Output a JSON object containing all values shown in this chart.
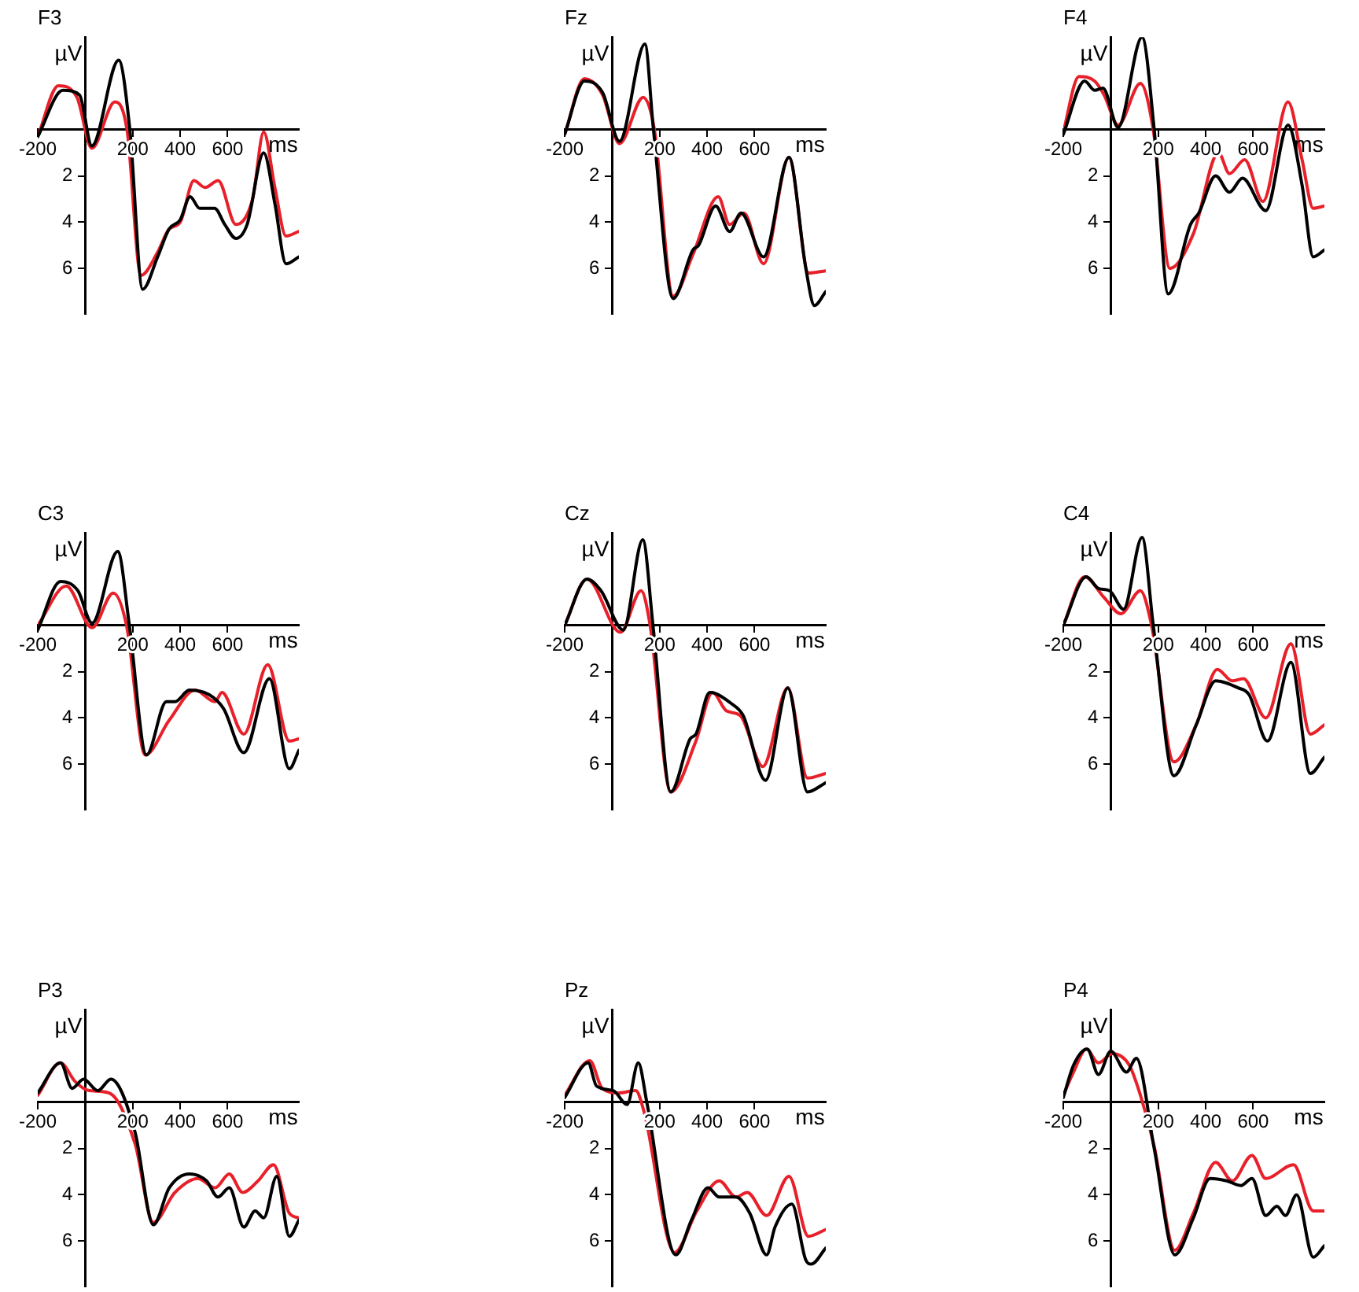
{
  "chart_data": [
    {
      "type": "line",
      "title": "F3",
      "xlabel": "ms",
      "ylabel": "µV",
      "xlim": [
        -200,
        900
      ],
      "ylim": [
        8,
        -4
      ],
      "xticks": [
        -200,
        200,
        400,
        600
      ],
      "yticks": [
        2,
        4,
        6
      ],
      "series": [
        {
          "color": "#000000",
          "x": [
            -200,
            -94,
            -24,
            28,
            141,
            188,
            242,
            305,
            353,
            400,
            442,
            482,
            545,
            588,
            635,
            682,
            752,
            799,
            846,
            900
          ],
          "values": [
            0.3,
            -1.7,
            -1.5,
            0.7,
            -3.0,
            0,
            6.9,
            5.5,
            4.3,
            3.9,
            2.9,
            3.4,
            3.4,
            4.1,
            4.7,
            4.1,
            1.0,
            3.2,
            5.8,
            5.5
          ]
        },
        {
          "color": "#e8202a",
          "x": [
            -200,
            -113,
            -35,
            28,
            125,
            176,
            235,
            305,
            353,
            400,
            458,
            505,
            560,
            635,
            705,
            752,
            799,
            846,
            900
          ],
          "values": [
            0.3,
            -1.9,
            -1.4,
            0.8,
            -1.2,
            0,
            6.3,
            5.3,
            4.3,
            4.0,
            2.2,
            2.5,
            2.2,
            4.1,
            3.0,
            0.1,
            2.5,
            4.6,
            4.4
          ]
        }
      ]
    },
    {
      "type": "line",
      "title": "Fz",
      "xlabel": "ms",
      "ylabel": "µV",
      "xlim": [
        -200,
        900
      ],
      "ylim": [
        8,
        -4
      ],
      "xticks": [
        -200,
        200,
        400,
        600
      ],
      "yticks": [
        2,
        4,
        6
      ],
      "series": [
        {
          "color": "#000000",
          "x": [
            -200,
            -117,
            -40,
            31,
            138,
            174,
            257,
            340,
            364,
            436,
            495,
            543,
            638,
            745,
            816,
            852,
            900
          ],
          "values": [
            0.2,
            -2.1,
            -1.6,
            0.5,
            -3.7,
            0,
            7.3,
            5.2,
            5.0,
            3.3,
            4.4,
            3.6,
            5.5,
            1.2,
            6.0,
            7.6,
            7.0
          ]
        },
        {
          "color": "#e8202a",
          "x": [
            -200,
            -117,
            -40,
            31,
            131,
            178,
            257,
            340,
            447,
            495,
            555,
            638,
            745,
            828,
            900
          ],
          "values": [
            0.2,
            -2.2,
            -1.5,
            0.6,
            -1.4,
            0,
            7.2,
            5.4,
            2.9,
            4.1,
            3.6,
            5.8,
            1.2,
            6.2,
            6.1
          ]
        }
      ]
    },
    {
      "type": "line",
      "title": "F4",
      "xlabel": "ms",
      "ylabel": "µV",
      "xlim": [
        -200,
        900
      ],
      "ylim": [
        8,
        -4
      ],
      "xticks": [
        -200,
        200,
        400,
        600
      ],
      "yticks": [
        2,
        4,
        6
      ],
      "series": [
        {
          "color": "#000000",
          "x": [
            -200,
            -110,
            -68,
            -33,
            31,
            132,
            183,
            242,
            336,
            371,
            442,
            500,
            555,
            653,
            747,
            806,
            853,
            900
          ],
          "values": [
            0.2,
            -2.1,
            -1.7,
            -1.8,
            -0.1,
            -4.0,
            0,
            7.1,
            4.1,
            3.6,
            2.0,
            2.7,
            2.1,
            3.5,
            -0.2,
            2.4,
            5.5,
            5.2
          ]
        },
        {
          "color": "#e8202a",
          "x": [
            -200,
            -134,
            -68,
            -28,
            31,
            125,
            179,
            249,
            348,
            454,
            500,
            564,
            641,
            747,
            806,
            853,
            900
          ],
          "values": [
            0.1,
            -2.3,
            -2.1,
            -1.5,
            -0.2,
            -2.0,
            0,
            6.0,
            4.5,
            1.0,
            1.9,
            1.3,
            3.1,
            -1.2,
            1.3,
            3.4,
            3.3
          ]
        }
      ]
    },
    {
      "type": "line",
      "title": "C3",
      "xlabel": "ms",
      "ylabel": "µV",
      "xlim": [
        -200,
        900
      ],
      "ylim": [
        8,
        -4
      ],
      "xticks": [
        -200,
        200,
        400,
        600
      ],
      "yticks": [
        2,
        4,
        6
      ],
      "series": [
        {
          "color": "#000000",
          "x": [
            -200,
            -104,
            -31,
            29,
            137,
            186,
            258,
            342,
            378,
            439,
            523,
            583,
            668,
            776,
            860,
            900
          ],
          "values": [
            0.2,
            -1.9,
            -1.5,
            -0.1,
            -3.2,
            0,
            5.6,
            3.3,
            3.3,
            2.8,
            3.0,
            3.6,
            5.5,
            2.3,
            6.2,
            5.4
          ]
        },
        {
          "color": "#e8202a",
          "x": [
            -200,
            -80,
            29,
            118,
            174,
            253,
            354,
            463,
            547,
            576,
            668,
            769,
            860,
            900
          ],
          "values": [
            0.0,
            -1.7,
            0.1,
            -1.4,
            0,
            5.6,
            4.1,
            2.8,
            3.3,
            2.9,
            4.7,
            1.7,
            5.0,
            4.9
          ]
        }
      ]
    },
    {
      "type": "line",
      "title": "Cz",
      "xlabel": "ms",
      "ylabel": "µV",
      "xlim": [
        -200,
        900
      ],
      "ylim": [
        8,
        -4
      ],
      "xticks": [
        -200,
        200,
        400,
        600
      ],
      "yticks": [
        2,
        4,
        6
      ],
      "series": [
        {
          "color": "#000000",
          "x": [
            -200,
            -106,
            -47,
            47,
            129,
            172,
            247,
            329,
            353,
            411,
            505,
            552,
            646,
            740,
            823,
            900
          ],
          "values": [
            0.0,
            -2.0,
            -1.5,
            0.2,
            -3.7,
            0,
            7.2,
            4.9,
            4.7,
            2.9,
            3.4,
            3.9,
            6.7,
            2.7,
            7.2,
            6.8
          ]
        },
        {
          "color": "#e8202a",
          "x": [
            -200,
            -106,
            35,
            122,
            160,
            247,
            353,
            423,
            482,
            540,
            635,
            740,
            823,
            900
          ],
          "values": [
            0.0,
            -2.0,
            0.3,
            -1.5,
            0,
            7.2,
            5.0,
            2.9,
            3.7,
            3.9,
            6.1,
            2.7,
            6.6,
            6.4
          ]
        }
      ]
    },
    {
      "type": "line",
      "title": "C4",
      "xlabel": "ms",
      "ylabel": "µV",
      "xlim": [
        -200,
        900
      ],
      "ylim": [
        8,
        -4
      ],
      "xticks": [
        -200,
        200,
        400,
        600
      ],
      "yticks": [
        2,
        4,
        6
      ],
      "series": [
        {
          "color": "#000000",
          "x": [
            -200,
            -103,
            -52,
            -5,
            54,
            132,
            179,
            266,
            360,
            442,
            536,
            583,
            660,
            759,
            841,
            900
          ],
          "values": [
            0.0,
            -2.1,
            -1.6,
            -1.5,
            -0.7,
            -3.8,
            0,
            6.5,
            4.3,
            2.4,
            2.7,
            3.0,
            5.0,
            1.6,
            6.4,
            5.7
          ]
        },
        {
          "color": "#e8202a",
          "x": [
            -200,
            -110,
            -28,
            42,
            125,
            172,
            266,
            360,
            449,
            512,
            559,
            653,
            759,
            841,
            900
          ],
          "values": [
            0.0,
            -2.1,
            -1.2,
            -0.5,
            -1.5,
            0,
            5.9,
            4.3,
            1.9,
            2.4,
            2.3,
            4.0,
            0.8,
            4.7,
            4.3
          ]
        }
      ]
    },
    {
      "type": "line",
      "title": "P3",
      "xlabel": "ms",
      "ylabel": "µV",
      "xlim": [
        -200,
        900
      ],
      "ylim": [
        8,
        -4
      ],
      "xticks": [
        -200,
        200,
        400,
        600
      ],
      "yticks": [
        2,
        4,
        6
      ],
      "series": [
        {
          "color": "#000000",
          "x": [
            -200,
            -104,
            -55,
            -7,
            53,
            108,
            210,
            287,
            354,
            439,
            511,
            559,
            607,
            668,
            716,
            752,
            807,
            860,
            900
          ],
          "values": [
            -0.4,
            -1.7,
            -0.6,
            -1.0,
            -0.5,
            -1.0,
            1.3,
            5.3,
            3.7,
            3.1,
            3.4,
            4.1,
            3.7,
            5.4,
            4.7,
            5.0,
            3.2,
            5.8,
            5.1
          ]
        },
        {
          "color": "#e8202a",
          "x": [
            -200,
            -104,
            -43,
            17,
            101,
            210,
            287,
            378,
            475,
            547,
            607,
            663,
            728,
            793,
            860,
            900
          ],
          "values": [
            -0.3,
            -1.7,
            -0.9,
            -0.5,
            -0.4,
            1.8,
            5.2,
            3.9,
            3.3,
            3.7,
            3.1,
            3.9,
            3.4,
            2.7,
            4.8,
            5.0
          ]
        }
      ]
    },
    {
      "type": "line",
      "title": "Pz",
      "xlabel": "ms",
      "ylabel": "µV",
      "xlim": [
        -200,
        900
      ],
      "ylim": [
        8,
        -4
      ],
      "xticks": [
        -200,
        200,
        400,
        600
      ],
      "yticks": [
        2,
        4,
        6
      ],
      "series": [
        {
          "color": "#000000",
          "x": [
            -200,
            -101,
            -66,
            5,
            63,
            110,
            146,
            268,
            334,
            404,
            451,
            522,
            580,
            651,
            686,
            757,
            815,
            839,
            900
          ],
          "values": [
            -0.2,
            -1.7,
            -0.7,
            -0.5,
            0.1,
            -1.7,
            0,
            6.6,
            5.1,
            3.7,
            4.1,
            4.1,
            4.8,
            6.6,
            5.4,
            4.4,
            6.8,
            7.0,
            6.3
          ]
        },
        {
          "color": "#e8202a",
          "x": [
            -200,
            -94,
            -42,
            28,
            99,
            134,
            263,
            357,
            451,
            522,
            569,
            651,
            745,
            827,
            900
          ],
          "values": [
            -0.3,
            -1.8,
            -0.6,
            -0.4,
            -0.5,
            0.4,
            6.5,
            4.7,
            3.4,
            4.1,
            3.9,
            4.9,
            3.2,
            5.8,
            5.5
          ]
        }
      ]
    },
    {
      "type": "line",
      "title": "P4",
      "xlabel": "ms",
      "ylabel": "µV",
      "xlim": [
        -200,
        900
      ],
      "ylim": [
        8,
        -4
      ],
      "xticks": [
        -200,
        200,
        400,
        600
      ],
      "yticks": [
        2,
        4,
        6
      ],
      "series": [
        {
          "color": "#000000",
          "x": [
            -200,
            -157,
            -99,
            -52,
            0,
            66,
            108,
            183,
            270,
            348,
            418,
            489,
            548,
            595,
            653,
            700,
            736,
            783,
            853,
            900
          ],
          "values": [
            -0.2,
            -1.6,
            -2.3,
            -1.2,
            -2.2,
            -1.3,
            -1.9,
            2.0,
            6.6,
            5.0,
            3.3,
            3.4,
            3.6,
            3.3,
            4.9,
            4.5,
            4.9,
            4.0,
            6.7,
            6.2
          ]
        },
        {
          "color": "#e8202a",
          "x": [
            -200,
            -157,
            -103,
            -52,
            7,
            78,
            125,
            183,
            270,
            348,
            442,
            512,
            595,
            653,
            770,
            853,
            900
          ],
          "values": [
            -0.3,
            -1.3,
            -2.3,
            -1.7,
            -2.1,
            -1.6,
            -0.3,
            1.9,
            6.4,
            4.8,
            2.6,
            3.4,
            2.3,
            3.3,
            2.7,
            4.7,
            4.7
          ]
        }
      ]
    }
  ]
}
